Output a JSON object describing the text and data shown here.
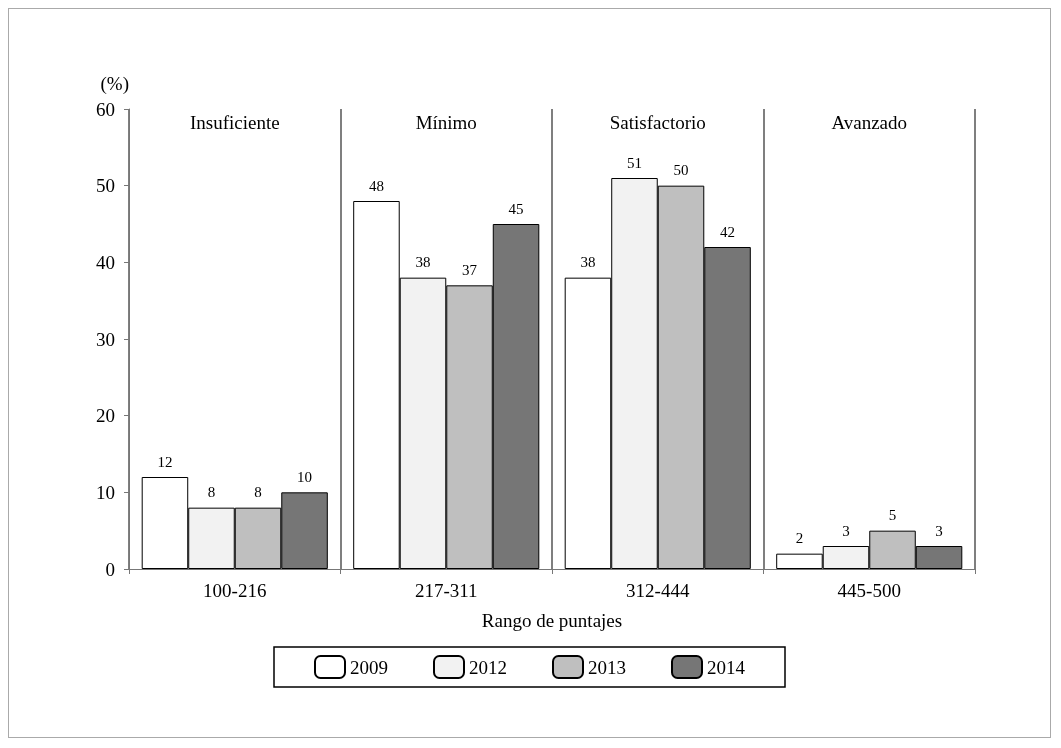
{
  "chart_data": {
    "type": "bar",
    "xlabel": "Rango de puntajes",
    "ylabel": "(%)",
    "categories": [
      "100-216",
      "217-311",
      "312-444",
      "445-500"
    ],
    "series": [
      {
        "name": "2009",
        "color": "#ffffff",
        "values": [
          12,
          48,
          38,
          2
        ]
      },
      {
        "name": "2012",
        "color": "#f2f2f2",
        "values": [
          8,
          38,
          51,
          3
        ]
      },
      {
        "name": "2013",
        "color": "#bfbfbf",
        "values": [
          8,
          37,
          50,
          5
        ]
      },
      {
        "name": "2014",
        "color": "#767676",
        "values": [
          10,
          45,
          42,
          3
        ]
      }
    ],
    "ylim": [
      0,
      60
    ],
    "yticks": [
      0,
      10,
      20,
      30,
      40,
      50,
      60
    ],
    "grid": "x",
    "legend": "bottom",
    "data_labels": true,
    "annotations": [
      "Insuficiente",
      "Mínimo",
      "Satisfactorio",
      "Avanzado"
    ]
  }
}
